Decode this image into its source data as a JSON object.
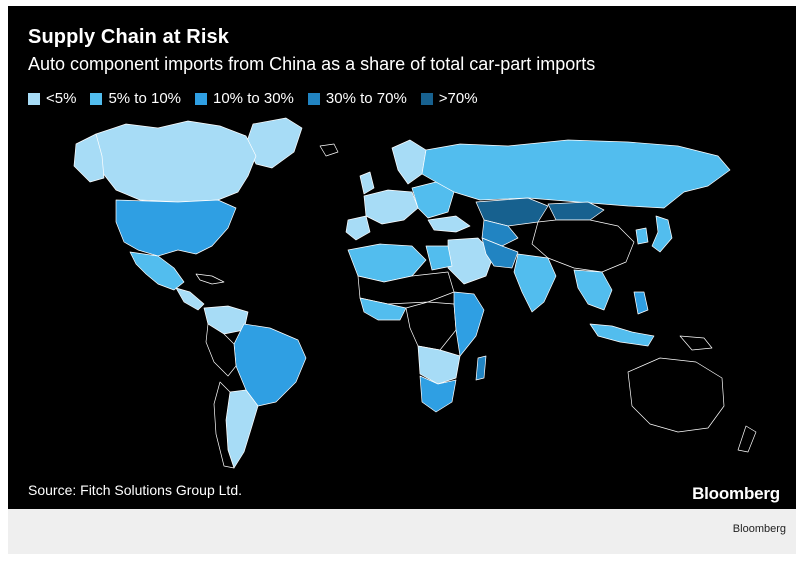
{
  "header": {
    "title": "Supply Chain at Risk",
    "subtitle": "Auto component imports from China as a share of total car-part imports"
  },
  "legend": {
    "items": [
      {
        "label": "<5%",
        "color": "#a7dcf6"
      },
      {
        "label": "5% to 10%",
        "color": "#52bdee"
      },
      {
        "label": "10% to 30%",
        "color": "#2f9fe3"
      },
      {
        "label": "30% to 70%",
        "color": "#2184c2"
      },
      {
        "label": ">70%",
        "color": "#17618f"
      }
    ]
  },
  "map": {
    "background_color": "#000000",
    "no_data_color": "#000000",
    "border_color": "#ffffff"
  },
  "footer": {
    "source": "Source: Fitch Solutions Group Ltd.",
    "brand": "Bloomberg",
    "credit": "Bloomberg"
  }
}
